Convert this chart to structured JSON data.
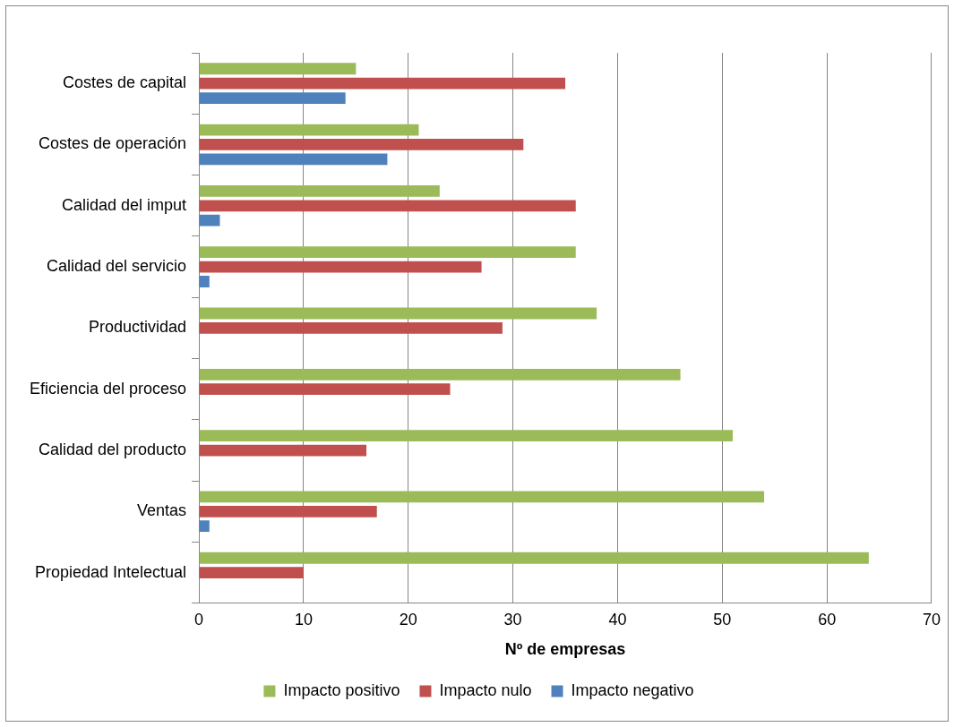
{
  "chart_data": {
    "type": "bar",
    "orientation": "horizontal",
    "xlabel": "Nº de empresas",
    "categories": [
      "Costes de capital",
      "Costes de operación",
      "Calidad del imput",
      "Calidad del servicio",
      "Productividad",
      "Eficiencia del proceso",
      "Calidad del producto",
      "Ventas",
      "Propiedad Intelectual"
    ],
    "series": [
      {
        "name": "Impacto positivo",
        "color": "#9bbb59",
        "values": [
          15,
          21,
          23,
          36,
          38,
          46,
          51,
          54,
          64
        ]
      },
      {
        "name": "Impacto nulo",
        "color": "#c0504d",
        "values": [
          35,
          31,
          36,
          27,
          29,
          24,
          16,
          17,
          10
        ]
      },
      {
        "name": "Impacto negativo",
        "color": "#4f81bd",
        "values": [
          14,
          18,
          2,
          1,
          null,
          null,
          null,
          1,
          null
        ]
      }
    ],
    "xlim": [
      0,
      70
    ],
    "xticks": [
      0,
      10,
      20,
      30,
      40,
      50,
      60,
      70
    ],
    "grid": "x",
    "legend": "bottom"
  }
}
